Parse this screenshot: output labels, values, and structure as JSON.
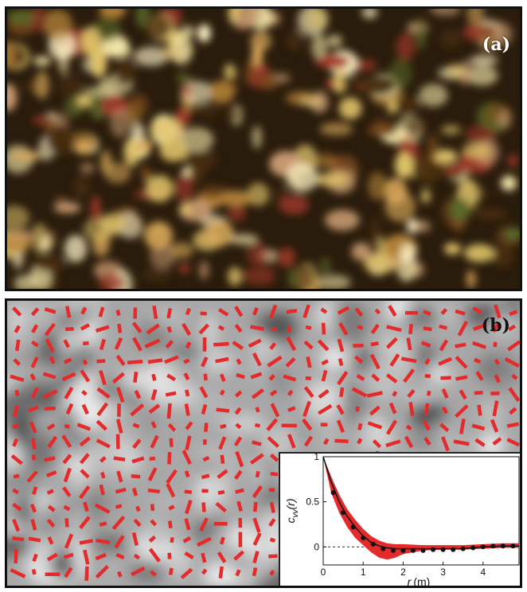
{
  "panels": {
    "a": {
      "label": "(a)"
    },
    "b": {
      "label": "(b)"
    }
  },
  "colors": {
    "accent": "#e42a2a",
    "crowd_dark": "#2a1c0c",
    "crowd_light": "#f3e7a8",
    "field_bg": "#9a9a9a"
  },
  "chart_data": {
    "type": "line",
    "xlabel_italic": "r",
    "xlabel_unit": "(m)",
    "ylabel_main": "c",
    "ylabel_sub": "vv",
    "ylabel_arg": "(r)",
    "xlim": [
      0,
      4.9
    ],
    "ylim": [
      -0.2,
      1.0
    ],
    "x_ticks": [
      "0",
      "1",
      "2",
      "3",
      "4"
    ],
    "y_ticks": [
      "0",
      "0.5",
      "1"
    ],
    "zero_line": "dashed",
    "series": [
      {
        "kind": "band",
        "color": "#e42a2a",
        "x": [
          0,
          0.2,
          0.4,
          0.6,
          0.8,
          1.0,
          1.2,
          1.4,
          1.6,
          1.8,
          2.0,
          2.5,
          3.0,
          3.5,
          4.0,
          4.5,
          4.9
        ],
        "upper": [
          1.0,
          0.78,
          0.58,
          0.42,
          0.3,
          0.2,
          0.12,
          0.07,
          0.04,
          0.03,
          0.03,
          0.02,
          0.02,
          0.02,
          0.03,
          0.04,
          0.04
        ],
        "lower": [
          1.0,
          0.6,
          0.38,
          0.22,
          0.1,
          0.02,
          -0.06,
          -0.12,
          -0.14,
          -0.12,
          -0.08,
          -0.04,
          -0.03,
          -0.03,
          -0.02,
          -0.01,
          -0.01
        ]
      },
      {
        "kind": "line",
        "color": "#111111",
        "x": [
          0,
          0.2,
          0.4,
          0.6,
          0.8,
          1.0,
          1.2,
          1.4,
          1.6,
          1.8,
          2.0,
          2.5,
          3.0,
          3.5,
          4.0,
          4.5,
          4.9
        ],
        "y": [
          1.0,
          0.72,
          0.5,
          0.34,
          0.22,
          0.12,
          0.05,
          0.01,
          -0.01,
          -0.02,
          -0.02,
          -0.02,
          -0.02,
          -0.02,
          0.0,
          0.01,
          0.01
        ]
      },
      {
        "kind": "points",
        "color": "#111111",
        "x": [
          0.25,
          0.5,
          0.75,
          1.0,
          1.25,
          1.5,
          1.75,
          2.0,
          2.25,
          2.5,
          2.75,
          3.0,
          3.25,
          3.5,
          3.75,
          4.0,
          4.25,
          4.5,
          4.75
        ],
        "y": [
          0.6,
          0.38,
          0.22,
          0.1,
          0.03,
          -0.02,
          -0.04,
          -0.04,
          -0.04,
          -0.04,
          -0.03,
          -0.03,
          -0.03,
          -0.02,
          -0.01,
          0.0,
          0.01,
          0.01,
          0.01
        ]
      }
    ]
  }
}
